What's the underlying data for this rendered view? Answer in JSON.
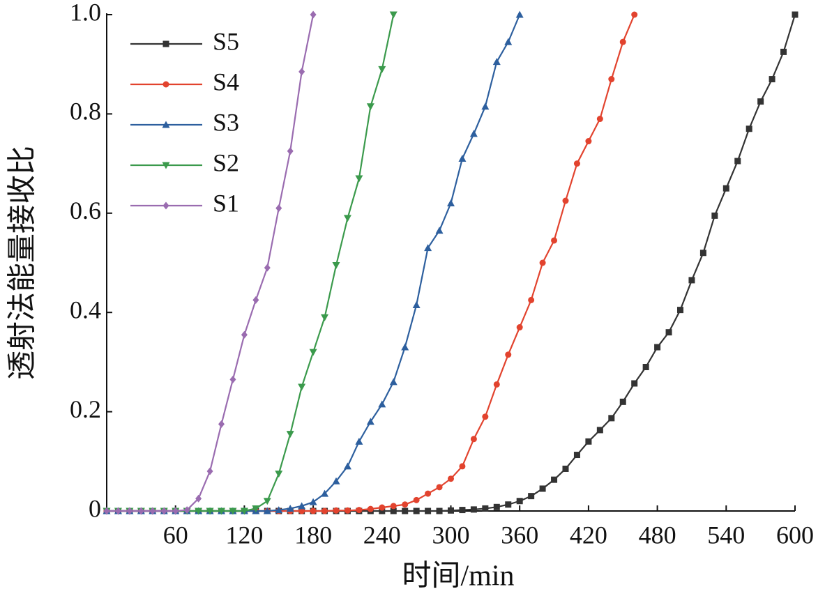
{
  "chart_data": {
    "type": "line",
    "xlabel": "时间/min",
    "ylabel": "透射法能量接收比",
    "xlim": [
      0,
      600
    ],
    "ylim": [
      0,
      1
    ],
    "xticks": [
      60,
      120,
      180,
      240,
      300,
      360,
      420,
      480,
      540,
      600
    ],
    "yticks": [
      0,
      0.2,
      0.4,
      0.6,
      0.8,
      {
        "value": 1,
        "label": "1.0"
      }
    ],
    "legend": "upper left",
    "series": [
      {
        "name": "S5",
        "color": "#333333",
        "marker": "square",
        "x": [
          0,
          10,
          20,
          30,
          40,
          50,
          60,
          70,
          80,
          90,
          100,
          110,
          120,
          130,
          140,
          150,
          160,
          170,
          180,
          190,
          200,
          210,
          220,
          230,
          240,
          250,
          260,
          270,
          280,
          290,
          300,
          310,
          320,
          330,
          340,
          350,
          360,
          370,
          380,
          390,
          400,
          410,
          420,
          430,
          440,
          450,
          460,
          470,
          480,
          490,
          500,
          510,
          520,
          530,
          540,
          550,
          560,
          570,
          580,
          590,
          600
        ],
        "values": [
          0,
          0,
          0,
          0,
          0,
          0,
          0,
          0,
          0,
          0,
          0,
          0,
          0,
          0,
          0,
          0,
          0,
          0,
          0,
          0,
          0,
          0,
          0,
          0,
          0,
          0,
          0,
          0,
          0,
          0,
          0.001,
          0.002,
          0.003,
          0.005,
          0.008,
          0.013,
          0.02,
          0.03,
          0.045,
          0.063,
          0.085,
          0.113,
          0.14,
          0.163,
          0.187,
          0.22,
          0.257,
          0.29,
          0.33,
          0.36,
          0.405,
          0.465,
          0.52,
          0.595,
          0.65,
          0.705,
          0.77,
          0.825,
          0.87,
          0.925,
          1.0
        ]
      },
      {
        "name": "S4",
        "color": "#e2432e",
        "marker": "circle",
        "x": [
          0,
          10,
          20,
          30,
          40,
          50,
          60,
          70,
          80,
          90,
          100,
          110,
          120,
          130,
          140,
          150,
          160,
          170,
          180,
          190,
          200,
          210,
          220,
          230,
          240,
          250,
          260,
          270,
          280,
          290,
          300,
          310,
          320,
          330,
          340,
          350,
          360,
          370,
          380,
          390,
          400,
          410,
          420,
          430,
          440,
          450,
          460
        ],
        "values": [
          0,
          0,
          0,
          0,
          0,
          0,
          0,
          0,
          0,
          0,
          0,
          0,
          0,
          0,
          0,
          0,
          0,
          0,
          0,
          0,
          0.001,
          0.001,
          0.002,
          0.004,
          0.007,
          0.01,
          0.013,
          0.022,
          0.035,
          0.048,
          0.065,
          0.09,
          0.145,
          0.19,
          0.255,
          0.315,
          0.37,
          0.425,
          0.5,
          0.545,
          0.625,
          0.7,
          0.745,
          0.79,
          0.87,
          0.945,
          1.0
        ]
      },
      {
        "name": "S3",
        "color": "#2d5f9e",
        "marker": "triangle-up",
        "x": [
          0,
          10,
          20,
          30,
          40,
          50,
          60,
          70,
          80,
          90,
          100,
          110,
          120,
          130,
          140,
          150,
          160,
          170,
          180,
          190,
          200,
          210,
          220,
          230,
          240,
          250,
          260,
          270,
          280,
          290,
          300,
          310,
          320,
          330,
          340,
          350,
          360
        ],
        "values": [
          0,
          0,
          0,
          0,
          0,
          0,
          0,
          0,
          0,
          0,
          0,
          0,
          0,
          0,
          0,
          0.002,
          0.005,
          0.01,
          0.018,
          0.035,
          0.06,
          0.09,
          0.14,
          0.18,
          0.215,
          0.26,
          0.33,
          0.415,
          0.53,
          0.565,
          0.62,
          0.71,
          0.76,
          0.815,
          0.905,
          0.945,
          1.0
        ]
      },
      {
        "name": "S2",
        "color": "#3b9a4c",
        "marker": "triangle-down",
        "x": [
          0,
          10,
          20,
          30,
          40,
          50,
          60,
          70,
          80,
          90,
          100,
          110,
          120,
          130,
          140,
          150,
          160,
          170,
          180,
          190,
          200,
          210,
          220,
          230,
          240,
          250
        ],
        "values": [
          0,
          0,
          0,
          0,
          0,
          0,
          0,
          0,
          0,
          0,
          0,
          0,
          0,
          0.005,
          0.02,
          0.075,
          0.155,
          0.25,
          0.32,
          0.39,
          0.495,
          0.59,
          0.67,
          0.815,
          0.89,
          1.0
        ]
      },
      {
        "name": "S1",
        "color": "#9a6cb0",
        "marker": "diamond",
        "x": [
          0,
          10,
          20,
          30,
          40,
          50,
          60,
          70,
          80,
          90,
          100,
          110,
          120,
          130,
          140,
          150,
          160,
          170,
          180
        ],
        "values": [
          0,
          0,
          0,
          0,
          0,
          0,
          0,
          0.002,
          0.025,
          0.08,
          0.175,
          0.265,
          0.355,
          0.425,
          0.49,
          0.61,
          0.725,
          0.885,
          1.0
        ]
      }
    ]
  }
}
